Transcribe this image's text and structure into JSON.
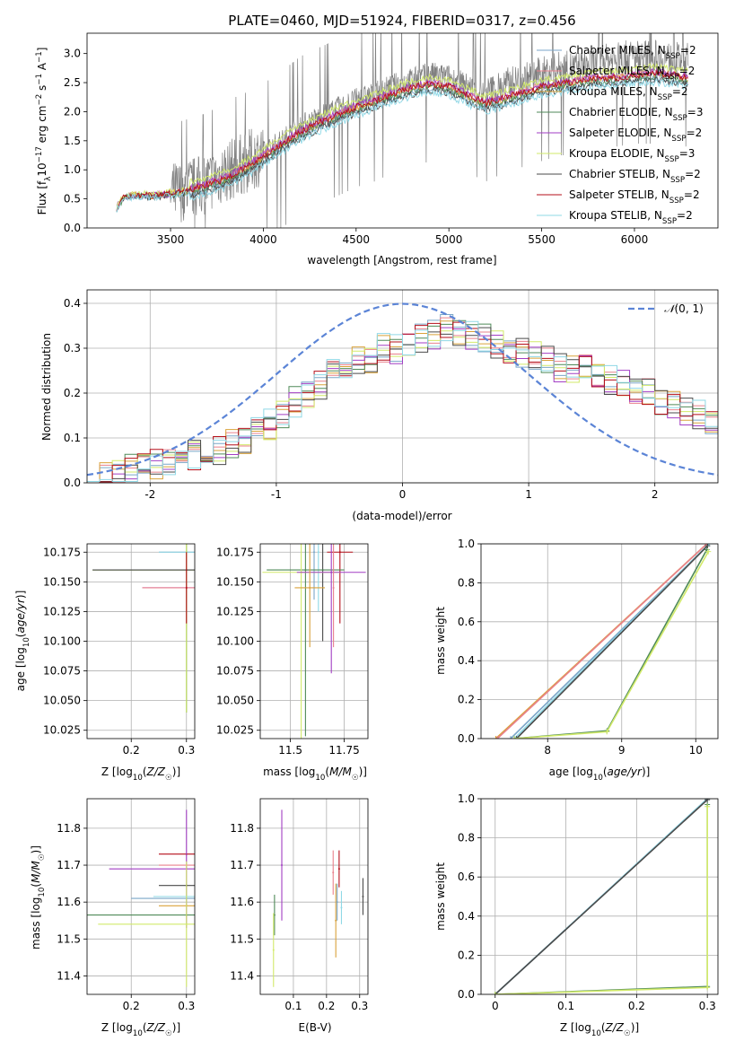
{
  "figure_title": "PLATE=0460, MJD=51924, FIBERID=0317, z=0.456",
  "colors": {
    "Chabrier MILES": "#7aa6c8",
    "Salpeter MILES": "#e9818c",
    "Kroupa MILES": "#d9a23a",
    "Chabrier ELODIE": "#4f8a58",
    "Salpeter ELODIE": "#a23ec4",
    "Kroupa ELODIE": "#d2ea6a",
    "Chabrier STELIB": "#4a4a4a",
    "Salpeter STELIB": "#b50f1a",
    "Kroupa STELIB": "#8fd8e6",
    "data": "#808080",
    "normal": "#5b84d6"
  },
  "chart_data": [
    {
      "id": "spectrum",
      "type": "line",
      "title": "PLATE=0460, MJD=51924, FIBERID=0317, z=0.456",
      "xlabel": "wavelength [Angstrom, rest frame]",
      "ylabel": "Flux [f_λ 10^-17 erg cm^-2 s^-1 A^-1]",
      "xlim": [
        3050,
        6450
      ],
      "ylim": [
        0,
        3.35
      ],
      "xticks": [
        3500,
        4000,
        4500,
        5000,
        5500,
        6000
      ],
      "yticks": [
        0.0,
        0.5,
        1.0,
        1.5,
        2.0,
        2.5,
        3.0
      ],
      "grid": false,
      "legend_position": "top-right",
      "legend": [
        "Chabrier MILES, N_SSP=2",
        "Salpeter MILES, N_SSP=2",
        "Kroupa MILES, N_SSP=2",
        "Chabrier ELODIE, N_SSP=3",
        "Salpeter ELODIE, N_SSP=2",
        "Kroupa ELODIE, N_SSP=3",
        "Chabrier STELIB, N_SSP=2",
        "Salpeter STELIB, N_SSP=2",
        "Kroupa STELIB, N_SSP=2"
      ],
      "data_continuum": {
        "x": [
          3210,
          3250,
          3300,
          3350,
          3400,
          3450,
          3500,
          3550,
          3600,
          3650,
          3700,
          3750,
          3800,
          3850,
          3900,
          3950,
          4000,
          4100,
          4200,
          4300,
          4400,
          4500,
          4600,
          4700,
          4800,
          4900,
          5000,
          5100,
          5200,
          5300,
          5400,
          5500,
          5600,
          5700,
          5800,
          5900,
          6000,
          6100,
          6200,
          6290
        ],
        "y": [
          0.4,
          0.55,
          0.6,
          0.57,
          0.58,
          0.55,
          0.6,
          0.63,
          0.68,
          0.72,
          0.78,
          0.88,
          0.96,
          1.05,
          1.12,
          1.2,
          1.28,
          1.5,
          1.75,
          1.9,
          2.05,
          2.2,
          2.3,
          2.45,
          2.55,
          2.65,
          2.6,
          2.45,
          2.3,
          2.45,
          2.55,
          2.65,
          2.75,
          2.75,
          2.85,
          2.9,
          2.95,
          2.95,
          2.9,
          2.9
        ]
      },
      "model_continuum": {
        "x": [
          3210,
          3250,
          3300,
          3400,
          3500,
          3600,
          3700,
          3800,
          3900,
          4000,
          4100,
          4200,
          4300,
          4400,
          4500,
          4600,
          4700,
          4800,
          4900,
          5000,
          5100,
          5200,
          5300,
          5400,
          5500,
          5600,
          5700,
          5800,
          5900,
          6000,
          6100,
          6200,
          6290
        ],
        "y": [
          0.35,
          0.52,
          0.56,
          0.55,
          0.58,
          0.63,
          0.72,
          0.82,
          1.0,
          1.2,
          1.42,
          1.62,
          1.78,
          1.92,
          2.05,
          2.15,
          2.28,
          2.38,
          2.45,
          2.4,
          2.25,
          2.12,
          2.2,
          2.3,
          2.4,
          2.45,
          2.5,
          2.55,
          2.55,
          2.6,
          2.62,
          2.6,
          2.55
        ]
      },
      "model_offsets": [
        -0.05,
        0.05,
        0.02,
        -0.02,
        0.06,
        0.15,
        -0.08,
        0.03,
        -0.12
      ]
    },
    {
      "id": "residuals",
      "type": "line",
      "xlabel": "(data-model)/error",
      "ylabel": "Normed distribution",
      "xlim": [
        -2.5,
        2.5
      ],
      "ylim": [
        0,
        0.43
      ],
      "xticks": [
        -2,
        -1,
        0,
        1,
        2
      ],
      "yticks": [
        0.0,
        0.1,
        0.2,
        0.3,
        0.4
      ],
      "grid": true,
      "legend_position": "top-right",
      "normal_label": "N(0,1)",
      "hist_edges": [
        -2.5,
        -2.4,
        -2.3,
        -2.2,
        -2.1,
        -2.0,
        -1.9,
        -1.8,
        -1.7,
        -1.6,
        -1.5,
        -1.4,
        -1.3,
        -1.2,
        -1.1,
        -1.0,
        -0.9,
        -0.8,
        -0.7,
        -0.6,
        -0.5,
        -0.4,
        -0.3,
        -0.2,
        -0.1,
        0.0,
        0.1,
        0.2,
        0.3,
        0.4,
        0.5,
        0.6,
        0.7,
        0.8,
        0.9,
        1.0,
        1.1,
        1.2,
        1.3,
        1.4,
        1.5,
        1.6,
        1.7,
        1.8,
        1.9,
        2.0,
        2.1,
        2.2,
        2.3,
        2.4,
        2.5
      ],
      "hist_base": [
        0.01,
        0.015,
        0.02,
        0.03,
        0.03,
        0.04,
        0.04,
        0.05,
        0.06,
        0.07,
        0.07,
        0.09,
        0.1,
        0.12,
        0.13,
        0.15,
        0.18,
        0.2,
        0.22,
        0.24,
        0.25,
        0.27,
        0.28,
        0.3,
        0.3,
        0.31,
        0.32,
        0.33,
        0.34,
        0.34,
        0.33,
        0.32,
        0.31,
        0.3,
        0.29,
        0.28,
        0.27,
        0.26,
        0.25,
        0.25,
        0.24,
        0.23,
        0.22,
        0.21,
        0.2,
        0.18,
        0.17,
        0.16,
        0.15,
        0.13
      ]
    },
    {
      "id": "age-vs-Z",
      "type": "scatter",
      "xlabel": "Z [log10(Z/Z☉)]",
      "ylabel": "age [log10(age/yr)]",
      "xlim": [
        0.12,
        0.315
      ],
      "ylim": [
        10.018,
        10.182
      ],
      "xticks": [
        0.2,
        0.3
      ],
      "yticks": [
        10.025,
        10.05,
        10.075,
        10.1,
        10.125,
        10.15,
        10.175
      ],
      "ytick_labels": [
        "10.025",
        "10.050",
        "10.075",
        "10.100",
        "10.125",
        "10.150",
        "10.175"
      ],
      "grid": true,
      "points": [
        {
          "m": "Chabrier MILES",
          "x": 0.3,
          "y": 10.175,
          "xerr": 0.05,
          "yerr": 0.0
        },
        {
          "m": "Kroupa STELIB",
          "x": 0.3,
          "y": 10.175,
          "xerr": 0.05,
          "yerr": 0.0
        },
        {
          "m": "Chabrier ELODIE",
          "x": 0.3,
          "y": 10.16,
          "xerr": 0.17,
          "yerr": 0.12
        },
        {
          "m": "Kroupa ELODIE",
          "x": 0.3,
          "y": 10.16,
          "xerr": 0.17,
          "yerr": 0.12
        },
        {
          "m": "Chabrier STELIB",
          "x": 0.3,
          "y": 10.16,
          "xerr": 0.17,
          "yerr": 0.0
        },
        {
          "m": "Salpeter ELODIE",
          "x": 0.3,
          "y": 10.145,
          "xerr": 0.08,
          "yerr": 0.0
        },
        {
          "m": "Salpeter MILES",
          "x": 0.3,
          "y": 10.145,
          "xerr": 0.08,
          "yerr": 0.0
        },
        {
          "m": "Salpeter STELIB",
          "x": 0.3,
          "y": 10.145,
          "xerr": 0.0,
          "yerr": 0.03
        }
      ]
    },
    {
      "id": "age-vs-mass",
      "type": "scatter",
      "xlabel": "mass [log10(M/M☉)]",
      "ylabel": "",
      "xlim": [
        11.36,
        11.86
      ],
      "ylim": [
        10.018,
        10.182
      ],
      "xticks": [
        11.5,
        11.75
      ],
      "yticks": [
        10.025,
        10.05,
        10.075,
        10.1,
        10.125,
        10.15,
        10.175
      ],
      "ytick_labels": [
        "10.025",
        "10.050",
        "10.075",
        "10.100",
        "10.125",
        "10.150",
        "10.175"
      ],
      "grid": true,
      "points": [
        {
          "m": "Chabrier MILES",
          "x": 11.61,
          "y": 10.175,
          "xerr": 0.0,
          "yerr": 0.04
        },
        {
          "m": "Kroupa STELIB",
          "x": 11.63,
          "y": 10.175,
          "xerr": 0.0,
          "yerr": 0.05
        },
        {
          "m": "Salpeter STELIB",
          "x": 11.73,
          "y": 10.175,
          "xerr": 0.06,
          "yerr": 0.06
        },
        {
          "m": "Chabrier STELIB",
          "x": 11.65,
          "y": 10.16,
          "xerr": 0.0,
          "yerr": 0.06
        },
        {
          "m": "Chabrier ELODIE",
          "x": 11.57,
          "y": 10.16,
          "xerr": 0.18,
          "yerr": 0.14
        },
        {
          "m": "Kroupa ELODIE",
          "x": 11.55,
          "y": 10.158,
          "xerr": 0.18,
          "yerr": 0.14
        },
        {
          "m": "Salpeter ELODIE",
          "x": 11.69,
          "y": 10.158,
          "xerr": 0.16,
          "yerr": 0.085
        },
        {
          "m": "Kroupa MILES",
          "x": 11.59,
          "y": 10.145,
          "xerr": 0.07,
          "yerr": 0.05
        },
        {
          "m": "Salpeter MILES",
          "x": 11.7,
          "y": 10.145,
          "xerr": 0.0,
          "yerr": 0.05
        }
      ]
    },
    {
      "id": "massweight-vs-age",
      "type": "line",
      "xlabel": "age log10(age/yr)",
      "ylabel": "mass weight",
      "xlim": [
        7.1,
        10.3
      ],
      "ylim": [
        0,
        1
      ],
      "xticks": [
        8,
        9,
        10
      ],
      "yticks": [
        0.0,
        0.2,
        0.4,
        0.6,
        0.8,
        1.0
      ],
      "grid": true,
      "lines": [
        {
          "m": "Kroupa MILES",
          "x": [
            7.3,
            10.15
          ],
          "y": [
            0.0,
            1.0
          ]
        },
        {
          "m": "Salpeter MILES",
          "x": [
            7.32,
            10.15
          ],
          "y": [
            0.0,
            1.0
          ]
        },
        {
          "m": "Chabrier MILES",
          "x": [
            7.5,
            10.18
          ],
          "y": [
            0.0,
            1.0
          ]
        },
        {
          "m": "Kroupa STELIB",
          "x": [
            7.55,
            10.18
          ],
          "y": [
            0.0,
            1.0
          ]
        },
        {
          "m": "Chabrier STELIB",
          "x": [
            7.58,
            10.16
          ],
          "y": [
            0.0,
            0.99
          ]
        },
        {
          "m": "Chabrier ELODIE",
          "x": [
            7.55,
            8.8,
            10.15
          ],
          "y": [
            0.0,
            0.04,
            0.97
          ]
        },
        {
          "m": "Kroupa ELODIE",
          "x": [
            7.55,
            8.8,
            10.17
          ],
          "y": [
            0.0,
            0.035,
            0.96
          ]
        }
      ]
    },
    {
      "id": "mass-vs-Z",
      "type": "scatter",
      "xlabel": "Z [log10(Z/Z☉)]",
      "ylabel": "mass [log10(M/M☉)]",
      "xlim": [
        0.12,
        0.315
      ],
      "ylim": [
        11.35,
        11.88
      ],
      "xticks": [
        0.2,
        0.3
      ],
      "yticks": [
        11.4,
        11.5,
        11.6,
        11.7,
        11.8
      ],
      "grid": true,
      "points": [
        {
          "m": "Salpeter STELIB",
          "x": 0.3,
          "y": 11.73,
          "xerr": 0.05,
          "yerr": 0.0
        },
        {
          "m": "Salpeter ELODIE",
          "x": 0.3,
          "y": 11.69,
          "xerr": 0.14,
          "yerr": 0.16
        },
        {
          "m": "Salpeter MILES",
          "x": 0.3,
          "y": 11.7,
          "xerr": 0.05,
          "yerr": 0.0
        },
        {
          "m": "Chabrier STELIB",
          "x": 0.3,
          "y": 11.645,
          "xerr": 0.05,
          "yerr": 0.0
        },
        {
          "m": "Chabrier MILES",
          "x": 0.3,
          "y": 11.61,
          "xerr": 0.1,
          "yerr": 0.0
        },
        {
          "m": "Kroupa STELIB",
          "x": 0.3,
          "y": 11.615,
          "xerr": 0.06,
          "yerr": 0.0
        },
        {
          "m": "Kroupa MILES",
          "x": 0.3,
          "y": 11.59,
          "xerr": 0.05,
          "yerr": 0.0
        },
        {
          "m": "Chabrier ELODIE",
          "x": 0.3,
          "y": 11.565,
          "xerr": 0.18,
          "yerr": 0.0
        },
        {
          "m": "Kroupa ELODIE",
          "x": 0.3,
          "y": 11.54,
          "xerr": 0.16,
          "yerr": 0.17
        }
      ]
    },
    {
      "id": "mass-vs-EBV",
      "type": "scatter",
      "xlabel": "E(B-V)",
      "ylabel": "",
      "xlim": [
        0.0,
        0.325
      ],
      "ylim": [
        11.35,
        11.88
      ],
      "xticks": [
        0.1,
        0.2,
        0.3
      ],
      "yticks": [
        11.4,
        11.5,
        11.6,
        11.7,
        11.8
      ],
      "grid": true,
      "points": [
        {
          "m": "Salpeter ELODIE",
          "x": 0.065,
          "y": 11.7,
          "xerr": 0.0,
          "yerr": 0.15
        },
        {
          "m": "Chabrier ELODIE",
          "x": 0.043,
          "y": 11.565,
          "xerr": 0.0,
          "yerr": 0.055
        },
        {
          "m": "Kroupa ELODIE",
          "x": 0.04,
          "y": 11.47,
          "xerr": 0.0,
          "yerr": 0.1
        },
        {
          "m": "Salpeter MILES",
          "x": 0.22,
          "y": 11.68,
          "xerr": 0.0,
          "yerr": 0.06
        },
        {
          "m": "Salpeter STELIB",
          "x": 0.238,
          "y": 11.69,
          "xerr": 0.0,
          "yerr": 0.05
        },
        {
          "m": "Kroupa MILES",
          "x": 0.228,
          "y": 11.55,
          "xerr": 0.0,
          "yerr": 0.1
        },
        {
          "m": "Chabrier MILES",
          "x": 0.232,
          "y": 11.6,
          "xerr": 0.0,
          "yerr": 0.05
        },
        {
          "m": "Kroupa STELIB",
          "x": 0.245,
          "y": 11.585,
          "xerr": 0.0,
          "yerr": 0.045
        },
        {
          "m": "Chabrier STELIB",
          "x": 0.31,
          "y": 11.615,
          "xerr": 0.0,
          "yerr": 0.05
        }
      ]
    },
    {
      "id": "massweight-vs-Z",
      "type": "line",
      "xlabel": "Z [log10(Z/Z☉)]",
      "ylabel": "mass weight",
      "xlim": [
        -0.02,
        0.315
      ],
      "ylim": [
        0,
        1
      ],
      "xticks": [
        0.0,
        0.1,
        0.2,
        0.3
      ],
      "yticks": [
        0.0,
        0.2,
        0.4,
        0.6,
        0.8,
        1.0
      ],
      "grid": true,
      "lines": [
        {
          "m": "Chabrier MILES",
          "x": [
            0.0,
            0.3
          ],
          "y": [
            0.0,
            1.0
          ]
        },
        {
          "m": "Kroupa STELIB",
          "x": [
            0.0,
            0.3
          ],
          "y": [
            0.0,
            1.0
          ]
        },
        {
          "m": "Chabrier STELIB",
          "x": [
            0.0,
            0.3
          ],
          "y": [
            0.0,
            0.995
          ]
        },
        {
          "m": "Chabrier ELODIE",
          "x": [
            0.0,
            0.3,
            0.3
          ],
          "y": [
            0.0,
            0.04,
            0.97
          ]
        },
        {
          "m": "Kroupa ELODIE",
          "x": [
            0.0,
            0.3,
            0.3
          ],
          "y": [
            0.0,
            0.035,
            0.96
          ]
        }
      ]
    }
  ]
}
